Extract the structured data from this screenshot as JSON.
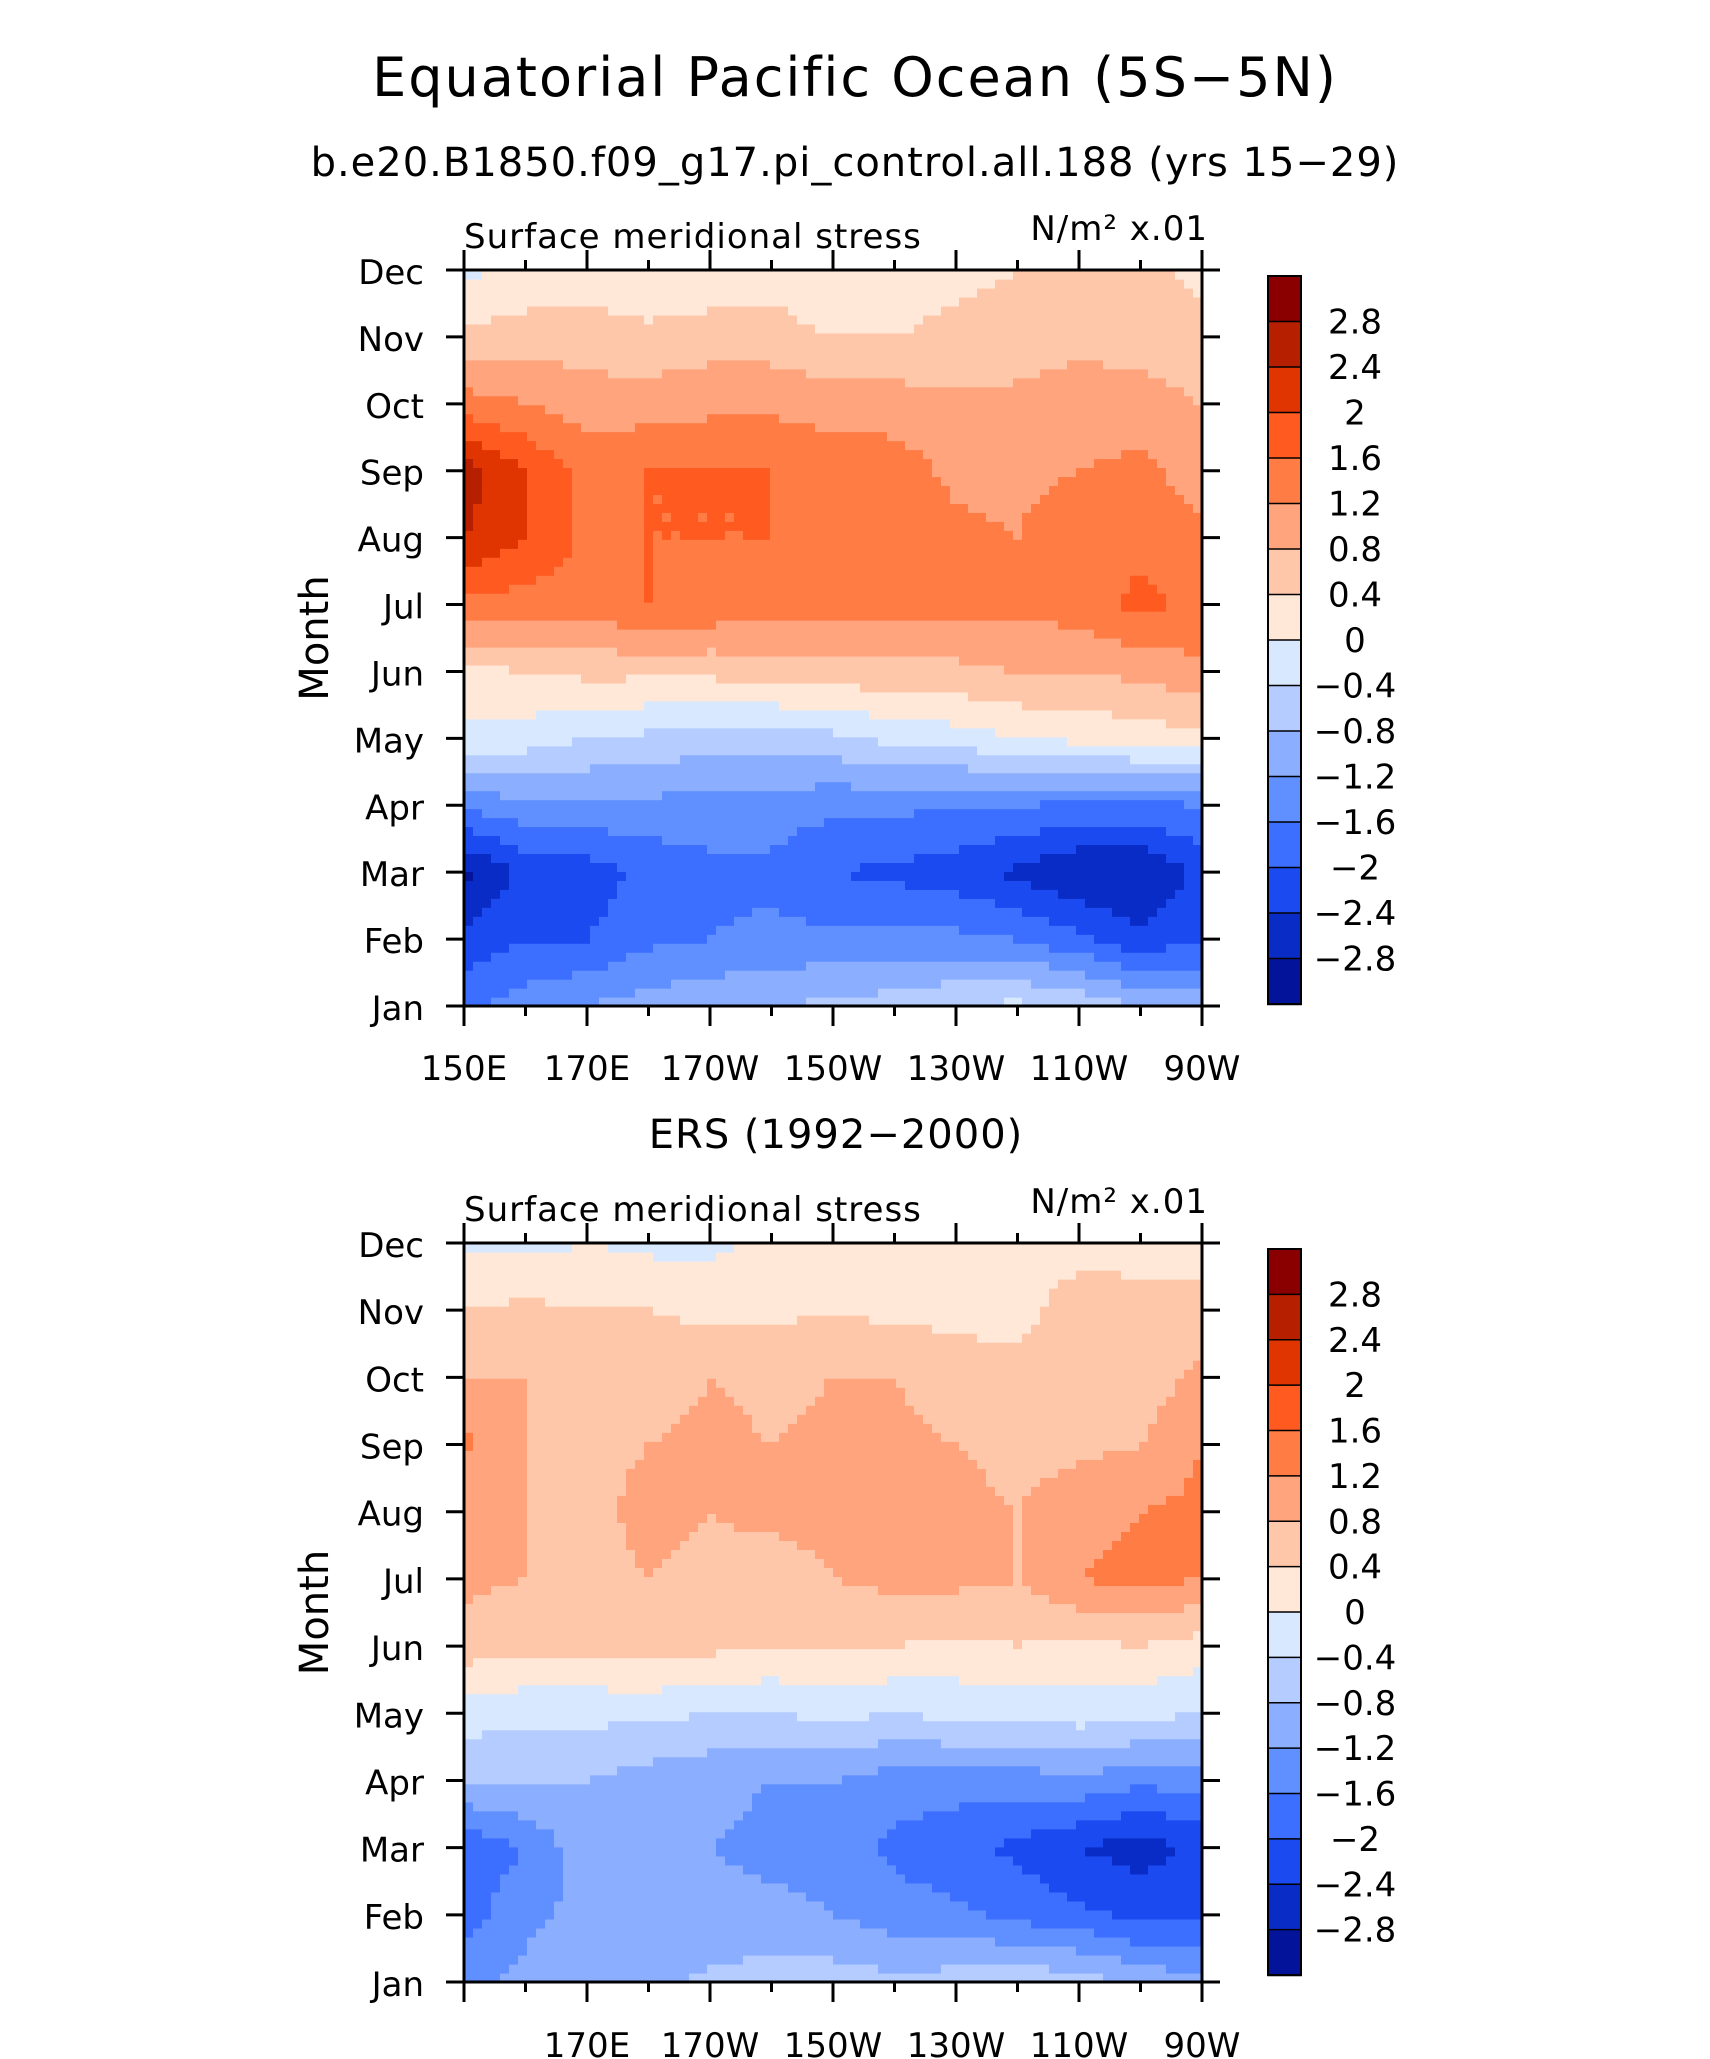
{
  "page": {
    "title": "Equatorial Pacific Ocean (5S−5N)",
    "subtitle": "b.e20.B1850.f09_g17.pi_control.all.188 (yrs 15−29)"
  },
  "colorbar": {
    "labels": [
      "2.8",
      "2.4",
      "2",
      "1.6",
      "1.2",
      "0.8",
      "0.4",
      "0",
      "−0.4",
      "−0.8",
      "−1.2",
      "−1.6",
      "−2",
      "−2.4",
      "−2.8"
    ],
    "colors": [
      "#8a0000",
      "#b61f00",
      "#e03500",
      "#ff5a20",
      "#ff7c45",
      "#ffa47c",
      "#ffc7aa",
      "#ffe8d8",
      "#d8e8ff",
      "#b4ccff",
      "#8caeff",
      "#6090ff",
      "#3c6eff",
      "#1a4af0",
      "#0a2cc6",
      "#04149a"
    ]
  },
  "chart_data": [
    {
      "type": "heatmap",
      "title": "Surface meridional stress",
      "units": "N/m² x.01",
      "ylabel": "Month",
      "xlabel": "",
      "x_tick_labels": [
        "150E",
        "170E",
        "170W",
        "150W",
        "130W",
        "110W",
        "90W"
      ],
      "y_tick_labels": [
        "Jan",
        "Feb",
        "Mar",
        "Apr",
        "May",
        "Jun",
        "Jul",
        "Aug",
        "Sep",
        "Oct",
        "Nov",
        "Dec"
      ],
      "x": [
        "150E",
        "160E",
        "170E",
        "180",
        "170W",
        "160W",
        "150W",
        "140W",
        "130W",
        "120W",
        "110W",
        "100W",
        "90W"
      ],
      "y": [
        "Jan",
        "Feb",
        "Mar",
        "Apr",
        "May",
        "Jun",
        "Jul",
        "Aug",
        "Sep",
        "Oct",
        "Nov",
        "Dec"
      ],
      "z": [
        [
          -1.7,
          -1.4,
          -1.2,
          -1.0,
          -0.9,
          -0.8,
          -0.7,
          -0.6,
          -0.4,
          -0.3,
          -0.5,
          -0.8,
          -1.0
        ],
        [
          -2.3,
          -2.0,
          -2.0,
          -1.7,
          -1.6,
          -1.5,
          -1.5,
          -1.5,
          -1.5,
          -1.6,
          -1.9,
          -2.3,
          -2.0
        ],
        [
          -2.9,
          -2.3,
          -2.2,
          -1.9,
          -1.7,
          -1.7,
          -2.0,
          -2.1,
          -2.2,
          -2.5,
          -2.8,
          -2.8,
          -2.3
        ],
        [
          -1.5,
          -1.3,
          -1.3,
          -1.3,
          -1.4,
          -1.4,
          -1.5,
          -1.5,
          -1.6,
          -1.6,
          -1.7,
          -1.7,
          -1.6
        ],
        [
          -0.1,
          -0.2,
          -0.4,
          -0.5,
          -0.6,
          -0.6,
          -0.5,
          -0.3,
          -0.2,
          0.0,
          0.1,
          0.2,
          0.3
        ],
        [
          0.3,
          0.4,
          0.5,
          0.5,
          0.5,
          0.6,
          0.6,
          0.7,
          0.7,
          0.8,
          0.8,
          0.9,
          1.1
        ],
        [
          1.5,
          1.4,
          1.4,
          1.6,
          1.5,
          1.4,
          1.4,
          1.3,
          1.3,
          1.3,
          1.4,
          1.7,
          1.5
        ],
        [
          2.4,
          2.0,
          1.5,
          1.6,
          1.6,
          1.6,
          1.5,
          1.5,
          1.3,
          1.2,
          1.5,
          1.5,
          1.3
        ],
        [
          2.6,
          2.0,
          1.5,
          1.6,
          1.6,
          1.6,
          1.5,
          1.4,
          1.1,
          1.1,
          1.2,
          1.3,
          1.0
        ],
        [
          1.4,
          1.2,
          1.0,
          1.0,
          1.1,
          1.1,
          1.0,
          1.0,
          0.9,
          0.9,
          1.0,
          1.0,
          0.8
        ],
        [
          0.5,
          0.6,
          0.6,
          0.5,
          0.6,
          0.6,
          0.4,
          0.4,
          0.5,
          0.6,
          0.7,
          0.6,
          0.5
        ],
        [
          -0.1,
          0.1,
          0.2,
          0.1,
          0.1,
          0.2,
          0.0,
          0.2,
          0.3,
          0.4,
          0.5,
          0.5,
          0.3
        ]
      ]
    },
    {
      "type": "heatmap",
      "panel_title": "ERS (1992−2000)",
      "title": "Surface meridional stress",
      "units": "N/m² x.01",
      "ylabel": "Month",
      "xlabel": "",
      "x_tick_labels": [
        "170E",
        "170W",
        "150W",
        "130W",
        "110W",
        "90W"
      ],
      "y_tick_labels": [
        "Jan",
        "Feb",
        "Mar",
        "Apr",
        "May",
        "Jun",
        "Jul",
        "Aug",
        "Sep",
        "Oct",
        "Nov",
        "Dec"
      ],
      "x": [
        "150E",
        "160E",
        "170E",
        "180",
        "170W",
        "160W",
        "150W",
        "140W",
        "130W",
        "120W",
        "110W",
        "100W",
        "90W"
      ],
      "y": [
        "Jan",
        "Feb",
        "Mar",
        "Apr",
        "May",
        "Jun",
        "Jul",
        "Aug",
        "Sep",
        "Oct",
        "Nov",
        "Dec"
      ],
      "z": [
        [
          -1.3,
          -1.1,
          -0.8,
          -0.9,
          -0.7,
          -0.6,
          -0.6,
          -0.7,
          -0.6,
          -0.5,
          -0.6,
          -0.9,
          -1.1
        ],
        [
          -1.8,
          -1.3,
          -1.1,
          -1.2,
          -1.1,
          -1.1,
          -1.2,
          -1.4,
          -1.5,
          -1.7,
          -1.9,
          -2.1,
          -2.1
        ],
        [
          -1.9,
          -1.6,
          -0.9,
          -1.1,
          -1.2,
          -1.3,
          -1.3,
          -1.7,
          -1.9,
          -2.1,
          -2.4,
          -2.6,
          -2.3
        ],
        [
          -0.8,
          -0.7,
          -0.8,
          -1.0,
          -1.1,
          -1.2,
          -1.2,
          -1.4,
          -1.4,
          -1.4,
          -1.3,
          -1.5,
          -1.4
        ],
        [
          -0.2,
          -0.3,
          -0.3,
          -0.3,
          -0.4,
          -0.4,
          -0.3,
          -0.4,
          -0.3,
          -0.3,
          -0.2,
          -0.3,
          -0.4
        ],
        [
          0.6,
          0.5,
          0.5,
          0.6,
          0.5,
          0.4,
          0.4,
          0.4,
          0.3,
          0.4,
          0.3,
          0.4,
          0.2
        ],
        [
          0.9,
          0.8,
          0.7,
          0.8,
          0.7,
          0.6,
          0.8,
          0.9,
          0.9,
          0.8,
          1.2,
          1.3,
          1.2
        ],
        [
          0.8,
          0.8,
          0.7,
          0.9,
          0.8,
          0.9,
          0.9,
          1.0,
          1.0,
          0.8,
          1.1,
          1.2,
          1.3
        ],
        [
          1.3,
          0.8,
          0.7,
          0.8,
          0.9,
          0.8,
          0.9,
          0.9,
          0.8,
          0.6,
          0.7,
          0.8,
          1.2
        ],
        [
          0.8,
          0.8,
          0.6,
          0.6,
          0.8,
          0.7,
          0.8,
          0.8,
          0.6,
          0.6,
          0.7,
          0.6,
          0.9
        ],
        [
          0.4,
          0.5,
          0.4,
          0.4,
          0.3,
          0.3,
          0.4,
          0.3,
          0.3,
          0.2,
          0.7,
          0.6,
          0.6
        ],
        [
          -0.1,
          -0.1,
          0.0,
          -0.1,
          -0.1,
          0.1,
          0.1,
          0.2,
          0.2,
          0.1,
          0.2,
          0.2,
          0.1
        ]
      ]
    }
  ]
}
